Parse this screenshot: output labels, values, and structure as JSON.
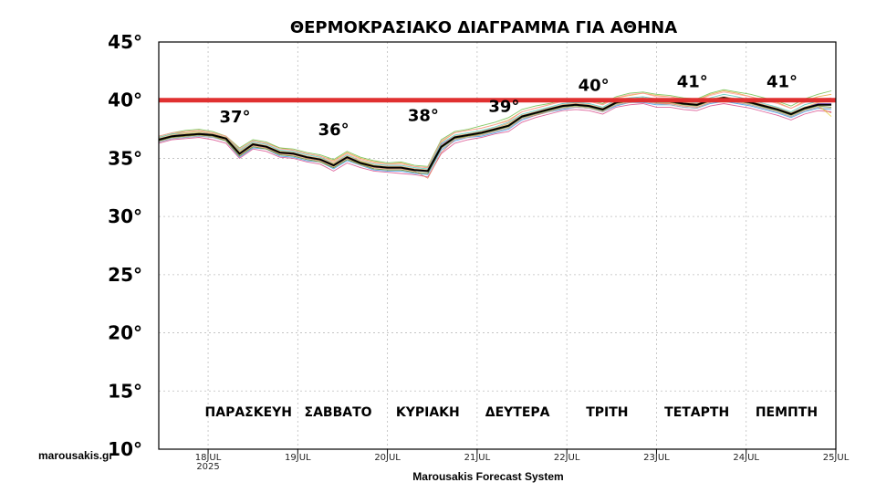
{
  "chart_data": {
    "type": "line",
    "title": "ΘΕΡΜΟΚΡΑΣΙΑΚΟ ΔΙΑΓΡΑΜΜΑ ΓΙΑ ΑΘΗΝΑ",
    "xlabel": "Marousakis Forecast System",
    "watermark": "marousakis.gr",
    "ylim": [
      10,
      45
    ],
    "xlim": [
      17.45,
      25.0
    ],
    "yticks": [
      10,
      15,
      20,
      25,
      30,
      35,
      40,
      45
    ],
    "ytick_suffix": "°",
    "xticks": [
      {
        "x": 18,
        "label": "18JUL",
        "sub": "2025"
      },
      {
        "x": 19,
        "label": "19JUL",
        "sub": ""
      },
      {
        "x": 20,
        "label": "20JUL",
        "sub": ""
      },
      {
        "x": 21,
        "label": "21JUL",
        "sub": ""
      },
      {
        "x": 22,
        "label": "22JUL",
        "sub": ""
      },
      {
        "x": 23,
        "label": "23JUL",
        "sub": ""
      },
      {
        "x": 24,
        "label": "24JUL",
        "sub": ""
      },
      {
        "x": 25,
        "label": "25JUL",
        "sub": ""
      }
    ],
    "threshold": {
      "y": 40,
      "color": "#e03030"
    },
    "day_labels": [
      {
        "x": 18.45,
        "label": "ΠΑΡΑΣΚΕΥΗ"
      },
      {
        "x": 19.45,
        "label": "ΣΑΒΒΑΤΟ"
      },
      {
        "x": 20.45,
        "label": "ΚΥΡΙΑΚΗ"
      },
      {
        "x": 21.45,
        "label": "ΔΕΥΤΕΡΑ"
      },
      {
        "x": 22.45,
        "label": "ΤΡΙΤΗ"
      },
      {
        "x": 23.45,
        "label": "ΤΕΤΑΡΤΗ"
      },
      {
        "x": 24.45,
        "label": "ΠΕΜΠΤΗ"
      }
    ],
    "peak_labels": [
      {
        "x": 18.3,
        "y": 38.1,
        "label": "37°"
      },
      {
        "x": 19.4,
        "y": 37.0,
        "label": "36°"
      },
      {
        "x": 20.4,
        "y": 38.2,
        "label": "38°"
      },
      {
        "x": 21.3,
        "y": 39.0,
        "label": "39°"
      },
      {
        "x": 22.3,
        "y": 40.8,
        "label": "40°"
      },
      {
        "x": 23.4,
        "y": 41.1,
        "label": "41°"
      },
      {
        "x": 24.4,
        "y": 41.1,
        "label": "41°"
      }
    ],
    "x": [
      17.45,
      17.6,
      17.75,
      17.9,
      18.05,
      18.2,
      18.35,
      18.5,
      18.65,
      18.8,
      18.95,
      19.1,
      19.25,
      19.4,
      19.55,
      19.7,
      19.85,
      20.0,
      20.15,
      20.3,
      20.45,
      20.6,
      20.75,
      20.9,
      21.05,
      21.2,
      21.35,
      21.5,
      21.65,
      21.8,
      21.95,
      22.1,
      22.25,
      22.4,
      22.55,
      22.7,
      22.85,
      23.0,
      23.15,
      23.3,
      23.45,
      23.6,
      23.75,
      23.9,
      24.05,
      24.2,
      24.35,
      24.5,
      24.65,
      24.8,
      24.95
    ],
    "mean_series": {
      "name": "mean",
      "color": "#000000",
      "values": [
        36.6,
        36.9,
        37.0,
        37.1,
        37.0,
        36.7,
        35.4,
        36.2,
        36.0,
        35.5,
        35.4,
        35.1,
        34.9,
        34.4,
        35.1,
        34.6,
        34.3,
        34.2,
        34.2,
        34.0,
        33.9,
        36.0,
        36.8,
        37.0,
        37.2,
        37.5,
        37.8,
        38.6,
        38.9,
        39.2,
        39.5,
        39.6,
        39.5,
        39.2,
        39.8,
        40.0,
        40.1,
        39.9,
        39.9,
        39.7,
        39.6,
        40.0,
        40.2,
        40.0,
        39.8,
        39.5,
        39.2,
        38.8,
        39.3,
        39.6,
        39.6
      ]
    },
    "series": [
      {
        "name": "m01",
        "color": "#e8a33c",
        "values": [
          36.8,
          37.1,
          37.3,
          37.4,
          37.2,
          36.9,
          35.8,
          36.5,
          36.3,
          35.9,
          35.7,
          35.4,
          35.2,
          34.8,
          35.5,
          35.0,
          34.7,
          34.5,
          34.6,
          34.3,
          34.2,
          36.4,
          37.2,
          37.4,
          37.6,
          37.9,
          38.3,
          39.0,
          39.3,
          39.6,
          39.9,
          40.0,
          39.9,
          39.6,
          40.2,
          40.4,
          40.6,
          40.4,
          40.3,
          40.1,
          40.0,
          40.5,
          40.8,
          40.6,
          40.3,
          40.0,
          39.8,
          39.3,
          39.9,
          40.3,
          40.5
        ]
      },
      {
        "name": "m02",
        "color": "#3c9be8",
        "values": [
          36.4,
          36.7,
          36.8,
          36.9,
          36.8,
          36.5,
          35.1,
          35.9,
          35.8,
          35.2,
          35.1,
          34.8,
          34.7,
          34.1,
          34.8,
          34.4,
          34.0,
          33.9,
          33.9,
          33.7,
          33.6,
          35.7,
          36.5,
          36.8,
          36.9,
          37.2,
          37.5,
          38.3,
          38.7,
          39.0,
          39.2,
          39.4,
          39.3,
          39.0,
          39.5,
          39.8,
          39.8,
          39.6,
          39.6,
          39.4,
          39.3,
          39.7,
          39.9,
          39.7,
          39.5,
          39.2,
          38.9,
          38.5,
          39.0,
          39.3,
          39.2
        ]
      },
      {
        "name": "m03",
        "color": "#6fbf4a",
        "values": [
          36.9,
          37.2,
          37.4,
          37.5,
          37.3,
          36.9,
          35.9,
          36.6,
          36.4,
          35.9,
          35.8,
          35.5,
          35.3,
          34.9,
          35.6,
          35.1,
          34.8,
          34.6,
          34.7,
          34.4,
          34.3,
          36.6,
          37.3,
          37.5,
          37.8,
          38.1,
          38.5,
          39.2,
          39.5,
          39.7,
          40.0,
          40.1,
          40.0,
          39.7,
          40.3,
          40.6,
          40.7,
          40.5,
          40.4,
          40.2,
          40.1,
          40.6,
          40.9,
          40.7,
          40.5,
          40.2,
          39.9,
          39.5,
          40.1,
          40.5,
          40.8
        ]
      },
      {
        "name": "m04",
        "color": "#d94b8c",
        "values": [
          36.3,
          36.6,
          36.7,
          36.8,
          36.6,
          36.3,
          35.0,
          35.8,
          35.6,
          35.1,
          35.0,
          34.7,
          34.5,
          33.9,
          34.6,
          34.2,
          33.9,
          33.8,
          33.7,
          33.6,
          33.4,
          35.4,
          36.3,
          36.6,
          36.8,
          37.1,
          37.3,
          38.1,
          38.5,
          38.8,
          39.1,
          39.2,
          39.1,
          38.8,
          39.4,
          39.6,
          39.7,
          39.4,
          39.4,
          39.2,
          39.1,
          39.5,
          39.7,
          39.5,
          39.3,
          39.0,
          38.7,
          38.3,
          38.8,
          39.1,
          39.0
        ]
      },
      {
        "name": "m05",
        "color": "#8a5ad6",
        "values": [
          36.7,
          37.0,
          37.1,
          37.2,
          37.1,
          36.8,
          35.6,
          36.3,
          36.1,
          35.6,
          35.5,
          35.2,
          35.0,
          34.5,
          35.2,
          34.7,
          34.4,
          34.3,
          34.3,
          34.1,
          34.0,
          36.2,
          36.9,
          37.1,
          37.3,
          37.6,
          38.0,
          38.7,
          39.0,
          39.3,
          39.6,
          39.7,
          39.6,
          39.3,
          39.9,
          40.1,
          40.2,
          40.0,
          40.0,
          39.8,
          39.7,
          40.1,
          40.3,
          40.1,
          39.9,
          39.6,
          39.3,
          38.9,
          39.4,
          39.7,
          39.7
        ]
      },
      {
        "name": "m06",
        "color": "#e07b5a",
        "values": [
          36.5,
          36.8,
          36.9,
          37.0,
          36.9,
          36.6,
          35.3,
          36.1,
          35.9,
          35.4,
          35.3,
          35.0,
          34.8,
          34.3,
          35.0,
          34.5,
          34.2,
          34.1,
          34.1,
          33.9,
          33.3,
          35.5,
          36.6,
          36.9,
          37.0,
          37.3,
          37.6,
          38.4,
          38.7,
          39.0,
          39.3,
          39.4,
          39.3,
          39.0,
          39.6,
          39.8,
          39.9,
          39.7,
          39.7,
          39.5,
          39.4,
          39.8,
          40.0,
          39.8,
          39.6,
          39.3,
          39.0,
          38.6,
          39.1,
          39.4,
          38.9
        ]
      },
      {
        "name": "m07",
        "color": "#e6d34a",
        "values": [
          36.6,
          36.9,
          37.1,
          37.2,
          37.0,
          36.7,
          35.5,
          36.2,
          36.0,
          35.6,
          35.4,
          35.1,
          34.9,
          34.5,
          35.1,
          34.7,
          34.4,
          34.2,
          34.2,
          34.0,
          33.9,
          36.0,
          36.8,
          37.0,
          37.2,
          37.5,
          37.9,
          38.6,
          38.9,
          39.2,
          39.5,
          39.6,
          39.5,
          39.2,
          39.8,
          40.0,
          40.1,
          39.9,
          39.9,
          39.7,
          39.6,
          40.0,
          40.2,
          40.0,
          39.8,
          39.5,
          39.2,
          38.8,
          39.3,
          39.6,
          38.6
        ]
      },
      {
        "name": "m08",
        "color": "#4fc7b8",
        "values": [
          36.8,
          37.1,
          37.2,
          37.3,
          37.1,
          36.8,
          35.7,
          36.4,
          36.2,
          35.7,
          35.6,
          35.3,
          35.1,
          34.6,
          35.3,
          34.8,
          34.5,
          34.4,
          34.4,
          34.2,
          34.1,
          36.3,
          37.0,
          37.2,
          37.4,
          37.7,
          38.1,
          38.8,
          39.1,
          39.4,
          39.7,
          39.8,
          39.7,
          39.4,
          40.0,
          40.2,
          40.3,
          40.1,
          40.1,
          39.9,
          39.8,
          40.2,
          40.5,
          40.3,
          40.0,
          39.7,
          39.4,
          39.0,
          39.6,
          39.9,
          40.1
        ]
      },
      {
        "name": "m09",
        "color": "#b0b0b0",
        "values": [
          36.4,
          36.7,
          36.8,
          36.9,
          36.8,
          36.5,
          35.2,
          36.0,
          35.8,
          35.3,
          35.2,
          34.9,
          34.7,
          34.2,
          34.9,
          34.4,
          34.1,
          34.0,
          34.0,
          33.8,
          33.7,
          35.8,
          36.6,
          36.8,
          37.0,
          37.3,
          37.6,
          38.4,
          38.8,
          39.0,
          39.3,
          39.4,
          39.3,
          39.0,
          39.6,
          39.8,
          39.9,
          39.7,
          39.6,
          39.4,
          39.3,
          39.8,
          40.0,
          39.8,
          39.6,
          39.3,
          39.0,
          38.6,
          39.1,
          39.4,
          39.3
        ]
      },
      {
        "name": "m10",
        "color": "#ff9a9a",
        "values": [
          36.9,
          37.2,
          37.3,
          37.4,
          37.2,
          36.9,
          35.8,
          36.5,
          36.3,
          35.8,
          35.7,
          35.4,
          35.2,
          34.7,
          35.4,
          34.9,
          34.6,
          34.5,
          34.5,
          34.3,
          34.2,
          36.5,
          37.2,
          37.4,
          37.6,
          37.9,
          38.2,
          39.0,
          39.3,
          39.6,
          39.9,
          40.0,
          39.9,
          39.6,
          40.2,
          40.5,
          40.6,
          40.3,
          40.3,
          40.1,
          40.0,
          40.4,
          40.7,
          40.5,
          40.3,
          40.0,
          39.7,
          39.3,
          39.8,
          40.1,
          40.2
        ]
      },
      {
        "name": "m11",
        "color": "#6b8e23",
        "values": [
          36.5,
          36.8,
          36.9,
          37.0,
          36.9,
          36.5,
          35.2,
          36.0,
          35.8,
          35.3,
          35.2,
          34.9,
          34.7,
          34.2,
          34.9,
          34.5,
          34.1,
          34.0,
          34.0,
          33.8,
          33.7,
          35.9,
          36.7,
          36.9,
          37.1,
          37.4,
          37.7,
          38.5,
          38.8,
          39.1,
          39.4,
          39.5,
          39.4,
          39.1,
          39.7,
          39.9,
          40.0,
          39.8,
          39.8,
          39.6,
          39.5,
          39.9,
          40.1,
          39.9,
          39.7,
          39.4,
          39.1,
          38.7,
          39.2,
          39.5,
          39.4
        ]
      },
      {
        "name": "m12",
        "color": "#f0c060",
        "values": [
          36.7,
          37.0,
          37.2,
          37.3,
          37.1,
          36.8,
          35.6,
          36.3,
          36.1,
          35.6,
          35.5,
          35.2,
          35.0,
          34.6,
          35.2,
          34.8,
          34.4,
          34.3,
          34.3,
          34.1,
          34.0,
          36.1,
          36.9,
          37.1,
          37.3,
          37.6,
          38.0,
          38.7,
          39.0,
          39.3,
          39.6,
          39.7,
          39.6,
          39.3,
          39.9,
          40.1,
          40.2,
          40.0,
          40.0,
          39.8,
          39.7,
          40.1,
          40.3,
          40.1,
          39.9,
          39.6,
          39.3,
          38.9,
          39.4,
          39.8,
          39.9
        ]
      }
    ]
  }
}
